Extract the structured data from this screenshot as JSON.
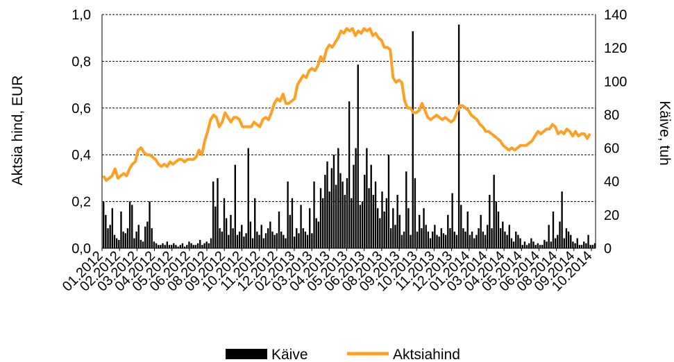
{
  "chart_data": {
    "type": "bar+line",
    "title": "",
    "y_left": {
      "label": "Aktsia hind, EUR",
      "ylim": [
        0,
        1.0
      ],
      "ticks": [
        "0,0",
        "0,2",
        "0,4",
        "0,6",
        "0,8",
        "1,0"
      ]
    },
    "y_right": {
      "label": "Käive, tuh",
      "ylim": [
        0,
        140
      ],
      "ticks": [
        "0",
        "20",
        "40",
        "60",
        "80",
        "100",
        "120",
        "140"
      ]
    },
    "x_tick_labels": [
      "01.2012",
      "02.2012",
      "03.2012",
      "04.2012",
      "05.2012",
      "06.2012",
      "08.2012",
      "09.2012",
      "10.2012",
      "11.2012",
      "12.2012",
      "02.2013",
      "03.2013",
      "04.2013",
      "05.2013",
      "06.2013",
      "08.2013",
      "09.2013",
      "10.2013",
      "11.2013",
      "12.2013",
      "01.2014",
      "03.2014",
      "04.2014",
      "05.2014",
      "06.2014",
      "08.2014",
      "09.2014",
      "10.2014"
    ],
    "grid": true,
    "legend_position": "bottom",
    "series": [
      {
        "name": "Käive",
        "type": "bar",
        "axis": "right",
        "color": "#000000",
        "note_values": "daily turnover, thousands",
        "values": [
          28,
          20,
          12,
          14,
          24,
          8,
          6,
          5,
          22,
          10,
          9,
          12,
          28,
          26,
          6,
          10,
          14,
          5,
          4,
          13,
          16,
          28,
          12,
          4,
          3,
          2,
          2,
          3,
          2,
          4,
          2,
          2,
          3,
          2,
          1,
          2,
          3,
          1,
          2,
          4,
          3,
          2,
          2,
          3,
          5,
          2,
          3,
          4,
          3,
          6,
          40,
          25,
          42,
          12,
          10,
          30,
          18,
          8,
          20,
          12,
          50,
          8,
          10,
          14,
          7,
          9,
          60,
          16,
          6,
          30,
          10,
          8,
          14,
          6,
          9,
          12,
          16,
          10,
          8,
          9,
          22,
          10,
          8,
          6,
          40,
          20,
          30,
          7,
          12,
          9,
          26,
          12,
          10,
          8,
          24,
          9,
          40,
          18,
          16,
          36,
          30,
          44,
          52,
          34,
          48,
          56,
          38,
          60,
          45,
          40,
          32,
          42,
          88,
          30,
          50,
          60,
          110,
          26,
          28,
          44,
          60,
          36,
          50,
          32,
          40,
          24,
          18,
          34,
          22,
          30,
          56,
          12,
          24,
          14,
          32,
          20,
          8,
          10,
          46,
          24,
          8,
          130,
          42,
          10,
          20,
          12,
          24,
          14,
          10,
          6,
          10,
          14,
          8,
          7,
          12,
          9,
          8,
          20,
          12,
          33,
          10,
          8,
          134,
          26,
          12,
          10,
          22,
          8,
          10,
          6,
          8,
          12,
          20,
          10,
          8,
          14,
          32,
          12,
          44,
          28,
          22,
          12,
          16,
          10,
          8,
          14,
          6,
          4,
          10,
          8,
          6,
          2,
          4,
          2,
          3,
          6,
          4,
          2,
          3,
          2,
          2,
          5,
          4,
          14,
          4,
          22,
          6,
          8,
          16,
          34,
          6,
          12,
          10,
          8,
          4,
          3,
          6,
          2,
          2,
          4,
          3,
          8,
          2,
          2,
          3
        ]
      },
      {
        "name": "Aktsiahind",
        "type": "line",
        "axis": "left",
        "color": "#ffa023",
        "note_values": "price, EUR",
        "values": [
          0.31,
          0.29,
          0.3,
          0.31,
          0.34,
          0.3,
          0.31,
          0.32,
          0.31,
          0.34,
          0.36,
          0.37,
          0.42,
          0.43,
          0.41,
          0.4,
          0.4,
          0.39,
          0.38,
          0.36,
          0.35,
          0.36,
          0.35,
          0.37,
          0.36,
          0.37,
          0.38,
          0.38,
          0.37,
          0.38,
          0.38,
          0.38,
          0.39,
          0.42,
          0.4,
          0.46,
          0.5,
          0.55,
          0.57,
          0.56,
          0.52,
          0.54,
          0.58,
          0.56,
          0.54,
          0.56,
          0.56,
          0.55,
          0.52,
          0.52,
          0.52,
          0.52,
          0.54,
          0.53,
          0.52,
          0.55,
          0.56,
          0.55,
          0.58,
          0.62,
          0.64,
          0.63,
          0.66,
          0.62,
          0.62,
          0.63,
          0.64,
          0.7,
          0.72,
          0.74,
          0.73,
          0.76,
          0.77,
          0.76,
          0.78,
          0.82,
          0.8,
          0.85,
          0.87,
          0.86,
          0.88,
          0.9,
          0.93,
          0.92,
          0.94,
          0.93,
          0.94,
          0.91,
          0.93,
          0.92,
          0.94,
          0.93,
          0.94,
          0.91,
          0.92,
          0.9,
          0.89,
          0.86,
          0.86,
          0.85,
          0.73,
          0.71,
          0.72,
          0.71,
          0.63,
          0.6,
          0.6,
          0.58,
          0.58,
          0.59,
          0.62,
          0.59,
          0.56,
          0.55,
          0.56,
          0.57,
          0.56,
          0.55,
          0.56,
          0.55,
          0.54,
          0.55,
          0.58,
          0.61,
          0.61,
          0.6,
          0.59,
          0.57,
          0.56,
          0.55,
          0.53,
          0.52,
          0.5,
          0.5,
          0.49,
          0.48,
          0.47,
          0.46,
          0.44,
          0.43,
          0.42,
          0.43,
          0.42,
          0.43,
          0.44,
          0.44,
          0.44,
          0.45,
          0.46,
          0.48,
          0.5,
          0.49,
          0.5,
          0.51,
          0.51,
          0.53,
          0.52,
          0.49,
          0.5,
          0.49,
          0.51,
          0.5,
          0.48,
          0.5,
          0.48,
          0.49,
          0.49,
          0.47,
          0.49
        ]
      }
    ]
  }
}
